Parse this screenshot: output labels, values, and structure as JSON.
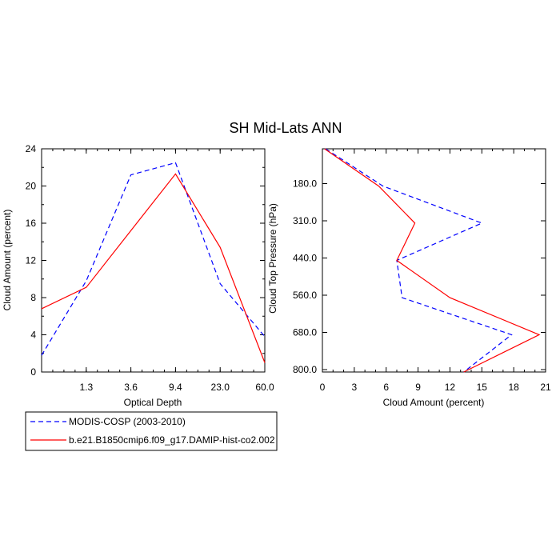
{
  "title": "SH Mid-Lats ANN",
  "colors": {
    "modis": "#0000ff",
    "model": "#ff0000"
  },
  "legend": {
    "items": [
      {
        "label": "MODIS-COSP (2003-2010)",
        "color": "#0000ff",
        "dash": "dashed"
      },
      {
        "label": "b.e21.B1850cmip6.f09_g17.DAMIP-hist-co2.002",
        "color": "#ff0000",
        "dash": "solid"
      }
    ]
  },
  "chart_data": [
    {
      "type": "line",
      "xlabel": "Optical Depth",
      "ylabel": "Cloud Amount (percent)",
      "x_tick_labels": [
        "1.3",
        "3.6",
        "9.4",
        "23.0",
        "60.0"
      ],
      "x_bin_edges_count": 6,
      "ylim": [
        0,
        24
      ],
      "y_ticks": [
        "0",
        "4",
        "8",
        "12",
        "16",
        "20",
        "24"
      ],
      "series": [
        {
          "name": "MODIS-COSP (2003-2010)",
          "x": [
            0.0,
            0.2,
            0.4,
            0.6,
            0.8,
            1.0
          ],
          "values": [
            1.8,
            9.8,
            21.2,
            22.5,
            9.5,
            3.8
          ]
        },
        {
          "name": "b.e21.B1850cmip6.f09_g17.DAMIP-hist-co2.002",
          "x": [
            0.0,
            0.2,
            0.4,
            0.6,
            0.8,
            1.0
          ],
          "values": [
            6.8,
            9.1,
            15.2,
            21.3,
            13.4,
            1.0
          ]
        }
      ]
    },
    {
      "type": "line",
      "xlabel": "Cloud Amount (percent)",
      "ylabel": "Cloud Top Pressure (hPa)",
      "x_ticks": [
        "0",
        "3",
        "6",
        "9",
        "12",
        "15",
        "18",
        "21"
      ],
      "xlim": [
        0,
        21
      ],
      "y_tick_labels": [
        "180.0",
        "310.0",
        "440.0",
        "560.0",
        "680.0",
        "800.0"
      ],
      "y_bin_edges_count": 7,
      "series": [
        {
          "name": "MODIS-COSP (2003-2010)",
          "y": [
            0.0,
            0.167,
            0.333,
            0.5,
            0.667,
            0.833,
            1.0
          ],
          "values": [
            0.3,
            5.7,
            15.0,
            7.0,
            7.5,
            17.8,
            13.3
          ]
        },
        {
          "name": "b.e21.B1850cmip6.f09_g17.DAMIP-hist-co2.002",
          "y": [
            0.0,
            0.167,
            0.333,
            0.5,
            0.667,
            0.833,
            1.0
          ],
          "values": [
            0.2,
            5.3,
            8.7,
            7.0,
            12.0,
            20.4,
            13.3
          ]
        }
      ]
    }
  ]
}
